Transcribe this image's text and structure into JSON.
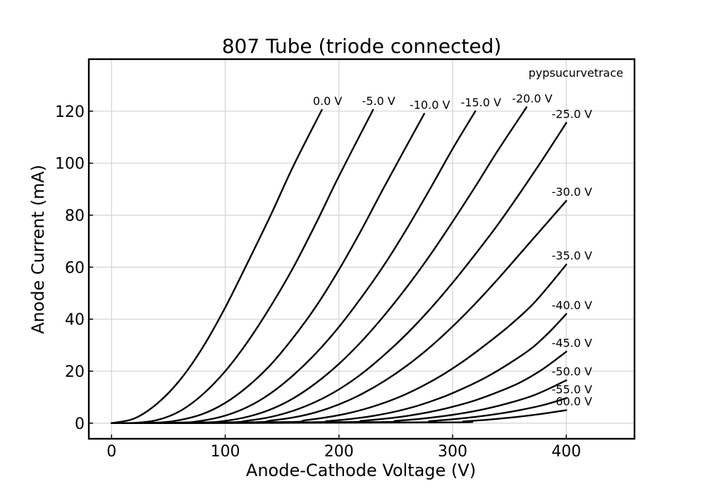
{
  "chart_data": {
    "type": "line",
    "title": "807 Tube (triode connected)",
    "xlabel": "Anode-Cathode Voltage (V)",
    "ylabel": "Anode Current (mA)",
    "xlim": [
      -20,
      460
    ],
    "ylim": [
      -6,
      140
    ],
    "xticks": [
      0,
      100,
      200,
      300,
      400
    ],
    "yticks": [
      0,
      20,
      40,
      60,
      80,
      100,
      120
    ],
    "grid": true,
    "watermark": "pypsucurvetrace",
    "series": [
      {
        "name": "0.0 V",
        "label": "0.0 V",
        "x": [
          0,
          20,
          40,
          60,
          80,
          100,
          120,
          140,
          160,
          185
        ],
        "y": [
          0,
          1.8,
          7.5,
          16.5,
          29,
          44.5,
          62,
          80,
          99,
          120.5
        ]
      },
      {
        "name": "-5.0 V",
        "label": "-5.0 V",
        "x": [
          0,
          20,
          40,
          60,
          80,
          100,
          120,
          140,
          160,
          180,
          200,
          230
        ],
        "y": [
          0,
          0.1,
          1.2,
          4.6,
          11,
          20,
          31.5,
          45,
          60,
          77,
          95,
          120.5
        ]
      },
      {
        "name": "-10.0 V",
        "label": "-10.0 V",
        "x": [
          0,
          40,
          60,
          80,
          100,
          120,
          140,
          160,
          180,
          200,
          220,
          240,
          275
        ],
        "y": [
          0,
          0.2,
          1.2,
          3.5,
          7.8,
          14.2,
          22.5,
          33,
          45,
          59,
          74.5,
          91,
          119
        ]
      },
      {
        "name": "-15.0 V",
        "label": "-15.0 V",
        "x": [
          0,
          60,
          80,
          100,
          120,
          140,
          160,
          180,
          200,
          220,
          240,
          260,
          280,
          300,
          320
        ],
        "y": [
          0,
          0.2,
          1.0,
          2.9,
          6.3,
          11.5,
          18.5,
          27,
          37,
          48.5,
          61,
          75,
          90,
          105.5,
          120
        ]
      },
      {
        "name": "-20.0 V",
        "label": "-20.0 V",
        "x": [
          0,
          80,
          100,
          120,
          140,
          160,
          180,
          200,
          220,
          240,
          260,
          280,
          300,
          320,
          340,
          365
        ],
        "y": [
          0,
          0.3,
          0.9,
          2.5,
          5.3,
          9.6,
          15.5,
          22.8,
          31.5,
          41.5,
          52.5,
          64.5,
          77.5,
          91,
          105,
          121.5
        ]
      },
      {
        "name": "-25.0 V",
        "label": "-25.0 V",
        "x": [
          0,
          100,
          120,
          140,
          160,
          180,
          200,
          220,
          240,
          260,
          280,
          300,
          320,
          340,
          360,
          380,
          400
        ],
        "y": [
          0,
          0.3,
          1.0,
          2.4,
          4.8,
          8.3,
          13,
          19,
          26.3,
          34.5,
          43.8,
          54,
          65,
          76.5,
          89,
          102,
          115.5
        ]
      },
      {
        "name": "-30.0 V",
        "label": "-30.0 V",
        "x": [
          0,
          120,
          140,
          160,
          180,
          200,
          220,
          240,
          260,
          280,
          300,
          320,
          340,
          360,
          380,
          400
        ],
        "y": [
          0,
          0.3,
          1.0,
          2.2,
          4.2,
          7.2,
          11.2,
          16.2,
          22.2,
          29.2,
          37.2,
          46,
          55.5,
          65.5,
          75.5,
          85.5
        ]
      },
      {
        "name": "-35.0 V",
        "label": "-35.0 V",
        "x": [
          0,
          150,
          170,
          190,
          210,
          230,
          250,
          270,
          290,
          310,
          330,
          350,
          370,
          385,
          400
        ],
        "y": [
          0,
          0.4,
          1.1,
          2.3,
          4.0,
          6.4,
          9.5,
          13.5,
          18.3,
          24,
          30.5,
          37.5,
          45.5,
          53,
          61
        ]
      },
      {
        "name": "-40.0 V",
        "label": "-40.0 V",
        "x": [
          0,
          170,
          190,
          210,
          230,
          250,
          270,
          290,
          310,
          330,
          350,
          370,
          385,
          400
        ],
        "y": [
          0,
          0.3,
          0.8,
          1.6,
          2.8,
          4.5,
          6.8,
          9.8,
          13.5,
          17.8,
          23,
          29,
          35,
          42
        ]
      },
      {
        "name": "-45.0 V",
        "label": "-45.0 V",
        "x": [
          0,
          200,
          220,
          240,
          260,
          280,
          300,
          320,
          340,
          360,
          380,
          400
        ],
        "y": [
          0,
          0.4,
          0.9,
          1.7,
          2.8,
          4.3,
          6.3,
          8.8,
          12,
          15.8,
          21,
          27.5
        ]
      },
      {
        "name": "-50.0 V",
        "label": "-50.0 V",
        "x": [
          0,
          230,
          250,
          270,
          290,
          310,
          330,
          350,
          370,
          385,
          400
        ],
        "y": [
          0,
          0.4,
          0.9,
          1.6,
          2.6,
          3.9,
          5.6,
          7.8,
          10.5,
          13.3,
          16.5
        ]
      },
      {
        "name": "-55.0 V",
        "label": "-55.0 V",
        "x": [
          0,
          260,
          280,
          300,
          320,
          340,
          360,
          380,
          400
        ],
        "y": [
          0,
          0.3,
          0.8,
          1.5,
          2.4,
          3.6,
          5.1,
          7.0,
          9.6
        ]
      },
      {
        "name": "-60.0 V",
        "label": "-60.0 V",
        "x": [
          0,
          290,
          310,
          330,
          350,
          370,
          385,
          400
        ],
        "y": [
          0,
          0.3,
          0.7,
          1.3,
          2.1,
          3.1,
          4.0,
          5.0
        ]
      }
    ]
  }
}
